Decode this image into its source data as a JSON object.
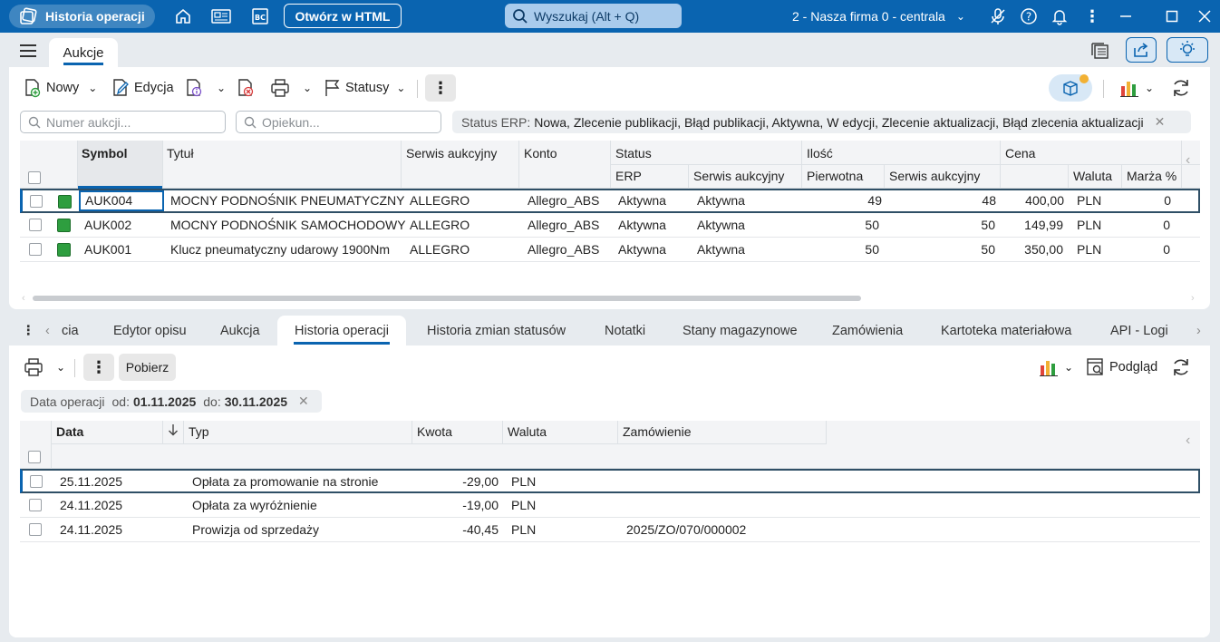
{
  "titlebar": {
    "app_title": "Historia operacji",
    "open_html_label": "Otwórz w HTML",
    "search_placeholder": "Wyszukaj (Alt + Q)",
    "company": "2 - Nasza firma 0 - centrala"
  },
  "main_tab": "Aukcje",
  "toolbar": {
    "new_label": "Nowy",
    "edit_label": "Edycja",
    "statuses_label": "Statusy"
  },
  "filters": {
    "auction_number_placeholder": "Numer aukcji...",
    "keeper_placeholder": "Opiekun...",
    "status_label": "Status ERP:",
    "status_value": "Nowa, Zlecenie publikacji, Błąd publikacji, Aktywna, W edycji, Zlecenie aktualizacji, Błąd zlecenia aktualizacji"
  },
  "auctions_table": {
    "headers": {
      "symbol": "Symbol",
      "title": "Tytuł",
      "service": "Serwis aukcyjny",
      "account": "Konto",
      "status": "Status",
      "status_erp": "ERP",
      "status_service": "Serwis aukcyjny",
      "qty": "Ilość",
      "qty_initial": "Pierwotna",
      "qty_service": "Serwis aukcyjny",
      "price": "Cena",
      "currency": "Waluta",
      "margin": "Marża %"
    },
    "rows": [
      {
        "symbol": "AUK004",
        "title": "MOCNY PODNOŚNIK PNEUMATYCZNY",
        "service": "ALLEGRO",
        "account": "Allegro_ABS",
        "erp": "Aktywna",
        "svc_status": "Aktywna",
        "qty_initial": "49",
        "qty_service": "48",
        "price": "400,00",
        "currency": "PLN",
        "margin": "0"
      },
      {
        "symbol": "AUK002",
        "title": "MOCNY PODNOŚNIK SAMOCHODOWY",
        "service": "ALLEGRO",
        "account": "Allegro_ABS",
        "erp": "Aktywna",
        "svc_status": "Aktywna",
        "qty_initial": "50",
        "qty_service": "50",
        "price": "149,99",
        "currency": "PLN",
        "margin": "0"
      },
      {
        "symbol": "AUK001",
        "title": "Klucz pneumatyczny udarowy 1900Nm",
        "service": "ALLEGRO",
        "account": "Allegro_ABS",
        "erp": "Aktywna",
        "svc_status": "Aktywna",
        "qty_initial": "50",
        "qty_service": "50",
        "price": "350,00",
        "currency": "PLN",
        "margin": "0"
      }
    ]
  },
  "bottom_tabs": [
    "cia",
    "Edytor opisu",
    "Aukcja",
    "Historia operacji",
    "Historia zmian statusów",
    "Notatki",
    "Stany magazynowe",
    "Zamówienia",
    "Kartoteka materiałowa",
    "API - Logi"
  ],
  "bottom_toolbar": {
    "fetch_label": "Pobierz",
    "preview_label": "Podgląd"
  },
  "date_filter": {
    "label": "Data operacji",
    "from_label": "od:",
    "from": "01.11.2025",
    "to_label": "do:",
    "to": "30.11.2025"
  },
  "history_table": {
    "headers": {
      "date": "Data",
      "type": "Typ",
      "amount": "Kwota",
      "currency": "Waluta",
      "order": "Zamówienie"
    },
    "rows": [
      {
        "date": "25.11.2025",
        "type": "Opłata za promowanie na stronie",
        "amount": "-29,00",
        "currency": "PLN",
        "order": ""
      },
      {
        "date": "24.11.2025",
        "type": "Opłata za wyróżnienie",
        "amount": "-19,00",
        "currency": "PLN",
        "order": ""
      },
      {
        "date": "24.11.2025",
        "type": "Prowizja od sprzedaży",
        "amount": "-40,45",
        "currency": "PLN",
        "order": "2025/ZO/070/000002"
      }
    ]
  },
  "colors": {
    "accent": "#0a64b0",
    "status_green": "#2e9e3f"
  }
}
